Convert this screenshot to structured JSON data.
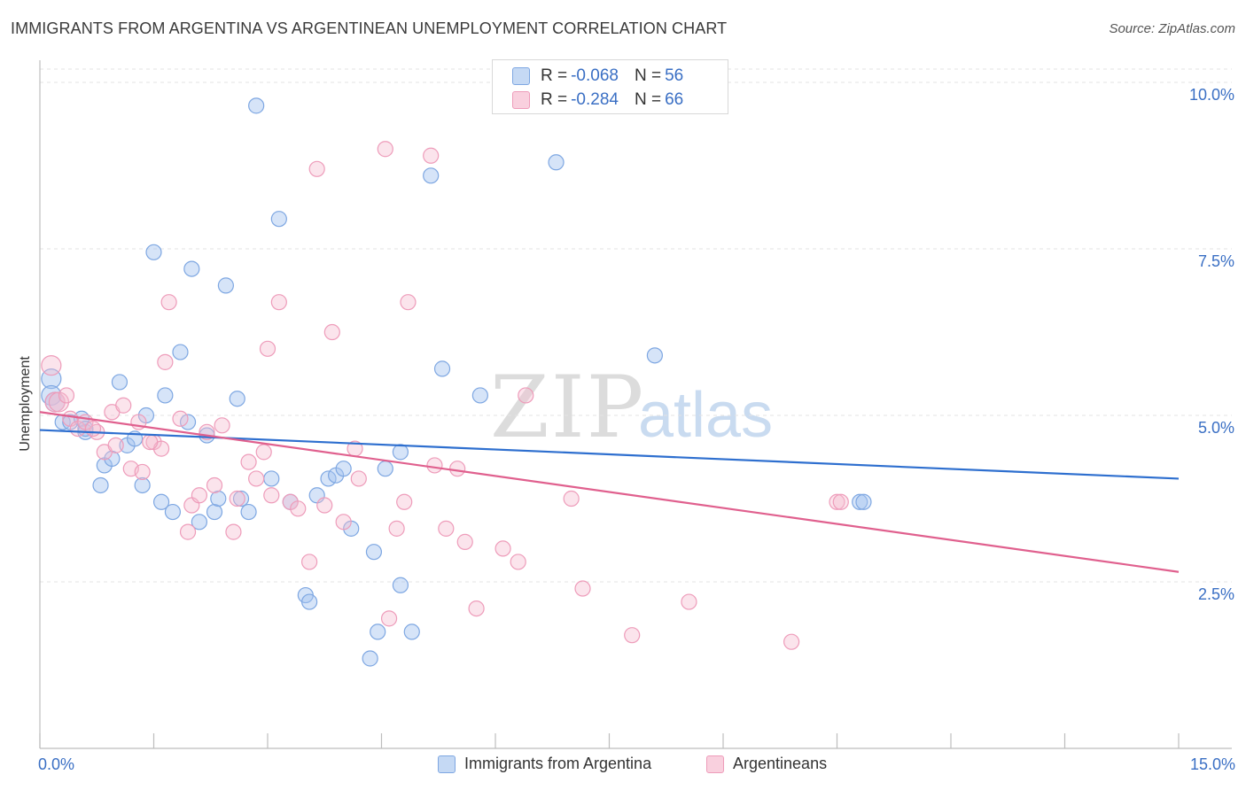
{
  "title": "IMMIGRANTS FROM ARGENTINA VS ARGENTINEAN UNEMPLOYMENT CORRELATION CHART",
  "source": "Source: ZipAtlas.com",
  "watermark": {
    "zip": "ZIP",
    "atlas": "atlas"
  },
  "colors": {
    "blue": "#6f9ee0",
    "blue_line": "#2e6fcf",
    "pink": "#ec8fb1",
    "pink_line": "#e0608e",
    "axis_text": "#3a6fc4"
  },
  "stats": {
    "rows": [
      {
        "r_label": "R = ",
        "r_value": "-0.068",
        "n_label": "N = ",
        "n_value": "56"
      },
      {
        "r_label": "R = ",
        "r_value": "-0.284",
        "n_label": "N = ",
        "n_value": "66"
      }
    ]
  },
  "legend": {
    "series1": "Immigrants from Argentina",
    "series2": "Argentineans"
  },
  "chart_data": {
    "type": "scatter",
    "title": "IMMIGRANTS FROM ARGENTINA VS ARGENTINEAN UNEMPLOYMENT CORRELATION CHART",
    "xlabel": "",
    "ylabel": "Unemployment",
    "xlim": [
      0,
      15
    ],
    "ylim": [
      0,
      10.2
    ],
    "x_tick_labels": [
      "0.0%",
      "15.0%"
    ],
    "y_ticks": [
      2.5,
      5.0,
      7.5,
      10.0
    ],
    "y_tick_labels": [
      "2.5%",
      "5.0%",
      "7.5%",
      "10.0%"
    ],
    "series": [
      {
        "name": "Immigrants from Argentina",
        "color": "#6f9ee0",
        "trend": {
          "x": [
            0,
            15
          ],
          "y": [
            4.78,
            4.05
          ]
        },
        "points": [
          [
            0.15,
            5.55
          ],
          [
            0.15,
            5.3
          ],
          [
            0.2,
            5.2
          ],
          [
            0.3,
            4.9
          ],
          [
            0.4,
            4.9
          ],
          [
            0.55,
            4.95
          ],
          [
            0.6,
            4.75
          ],
          [
            0.8,
            3.95
          ],
          [
            0.85,
            4.25
          ],
          [
            0.95,
            4.35
          ],
          [
            1.05,
            5.5
          ],
          [
            1.15,
            4.55
          ],
          [
            1.25,
            4.65
          ],
          [
            1.35,
            3.95
          ],
          [
            1.4,
            5.0
          ],
          [
            1.5,
            7.45
          ],
          [
            1.6,
            3.7
          ],
          [
            1.65,
            5.3
          ],
          [
            1.75,
            3.55
          ],
          [
            1.85,
            5.95
          ],
          [
            1.95,
            4.9
          ],
          [
            2.0,
            7.2
          ],
          [
            2.1,
            3.4
          ],
          [
            2.2,
            4.7
          ],
          [
            2.3,
            3.55
          ],
          [
            2.35,
            3.75
          ],
          [
            2.45,
            6.95
          ],
          [
            2.6,
            5.25
          ],
          [
            2.65,
            3.75
          ],
          [
            2.75,
            3.55
          ],
          [
            2.85,
            9.65
          ],
          [
            3.05,
            4.05
          ],
          [
            3.15,
            7.95
          ],
          [
            3.3,
            3.7
          ],
          [
            3.5,
            2.3
          ],
          [
            3.55,
            2.2
          ],
          [
            3.65,
            3.8
          ],
          [
            3.8,
            4.05
          ],
          [
            3.9,
            4.1
          ],
          [
            4.0,
            4.2
          ],
          [
            4.1,
            3.3
          ],
          [
            4.35,
            1.35
          ],
          [
            4.4,
            2.95
          ],
          [
            4.45,
            1.75
          ],
          [
            4.55,
            4.2
          ],
          [
            4.75,
            4.45
          ],
          [
            4.75,
            2.45
          ],
          [
            4.9,
            1.75
          ],
          [
            5.15,
            8.6
          ],
          [
            5.3,
            5.7
          ],
          [
            5.8,
            5.3
          ],
          [
            6.8,
            8.8
          ],
          [
            8.1,
            5.9
          ],
          [
            10.8,
            3.7
          ],
          [
            10.85,
            3.7
          ],
          [
            0.6,
            4.8
          ]
        ]
      },
      {
        "name": "Argentineans",
        "color": "#ec8fb1",
        "trend": {
          "x": [
            0,
            15
          ],
          "y": [
            5.05,
            2.65
          ]
        },
        "points": [
          [
            0.15,
            5.75
          ],
          [
            0.2,
            5.2
          ],
          [
            0.25,
            5.2
          ],
          [
            0.4,
            4.95
          ],
          [
            0.5,
            4.8
          ],
          [
            0.6,
            4.9
          ],
          [
            0.75,
            4.75
          ],
          [
            0.85,
            4.45
          ],
          [
            0.95,
            5.05
          ],
          [
            1.0,
            4.55
          ],
          [
            1.1,
            5.15
          ],
          [
            1.2,
            4.2
          ],
          [
            1.3,
            4.9
          ],
          [
            1.35,
            4.15
          ],
          [
            1.5,
            4.6
          ],
          [
            1.6,
            4.5
          ],
          [
            1.65,
            5.8
          ],
          [
            1.7,
            6.7
          ],
          [
            1.85,
            4.95
          ],
          [
            1.95,
            3.25
          ],
          [
            2.0,
            3.65
          ],
          [
            2.1,
            3.8
          ],
          [
            2.2,
            4.75
          ],
          [
            2.3,
            3.95
          ],
          [
            2.4,
            4.85
          ],
          [
            2.55,
            3.25
          ],
          [
            2.6,
            3.75
          ],
          [
            2.75,
            4.3
          ],
          [
            2.85,
            4.05
          ],
          [
            2.95,
            4.45
          ],
          [
            3.0,
            6.0
          ],
          [
            3.05,
            3.8
          ],
          [
            3.15,
            6.7
          ],
          [
            3.3,
            3.7
          ],
          [
            3.4,
            3.6
          ],
          [
            3.55,
            2.8
          ],
          [
            3.65,
            8.7
          ],
          [
            3.75,
            3.65
          ],
          [
            3.85,
            6.25
          ],
          [
            4.0,
            3.4
          ],
          [
            4.15,
            4.5
          ],
          [
            4.2,
            4.05
          ],
          [
            4.55,
            9.0
          ],
          [
            4.6,
            1.95
          ],
          [
            4.7,
            3.3
          ],
          [
            4.8,
            3.7
          ],
          [
            4.85,
            6.7
          ],
          [
            5.15,
            8.9
          ],
          [
            5.2,
            4.25
          ],
          [
            5.35,
            3.3
          ],
          [
            5.5,
            4.2
          ],
          [
            5.6,
            3.1
          ],
          [
            5.75,
            2.1
          ],
          [
            6.1,
            3.0
          ],
          [
            6.3,
            2.8
          ],
          [
            6.4,
            5.3
          ],
          [
            7.0,
            3.75
          ],
          [
            7.15,
            2.4
          ],
          [
            7.8,
            1.7
          ],
          [
            8.55,
            2.2
          ],
          [
            9.9,
            1.6
          ],
          [
            10.5,
            3.7
          ],
          [
            10.55,
            3.7
          ],
          [
            0.35,
            5.3
          ],
          [
            0.7,
            4.8
          ],
          [
            1.45,
            4.6
          ]
        ]
      }
    ]
  }
}
